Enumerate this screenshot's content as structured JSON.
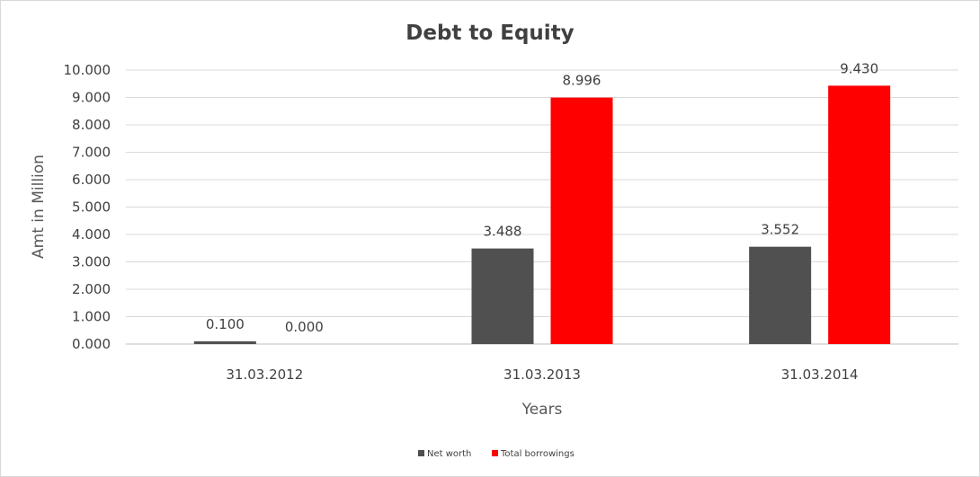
{
  "chart_data": {
    "type": "bar",
    "title": "Debt to Equity",
    "xlabel": "Years",
    "ylabel": "Amt in Million",
    "categories": [
      "31.03.2012",
      "31.03.2013",
      "31.03.2014"
    ],
    "series": [
      {
        "name": "Net worth",
        "color": "#505050",
        "values": [
          0.1,
          3.488,
          3.552
        ],
        "labels": [
          "0.100",
          "3.488",
          "3.552"
        ]
      },
      {
        "name": "Total borrowings",
        "color": "#ff0000",
        "values": [
          0.0,
          8.996,
          9.43
        ],
        "labels": [
          "0.000",
          "8.996",
          "9.430"
        ]
      }
    ],
    "ylim": [
      0,
      10
    ],
    "yticks": [
      "0.000",
      "1.000",
      "2.000",
      "3.000",
      "4.000",
      "5.000",
      "6.000",
      "7.000",
      "8.000",
      "9.000",
      "10.000"
    ],
    "grid": true,
    "legend": "bottom"
  }
}
